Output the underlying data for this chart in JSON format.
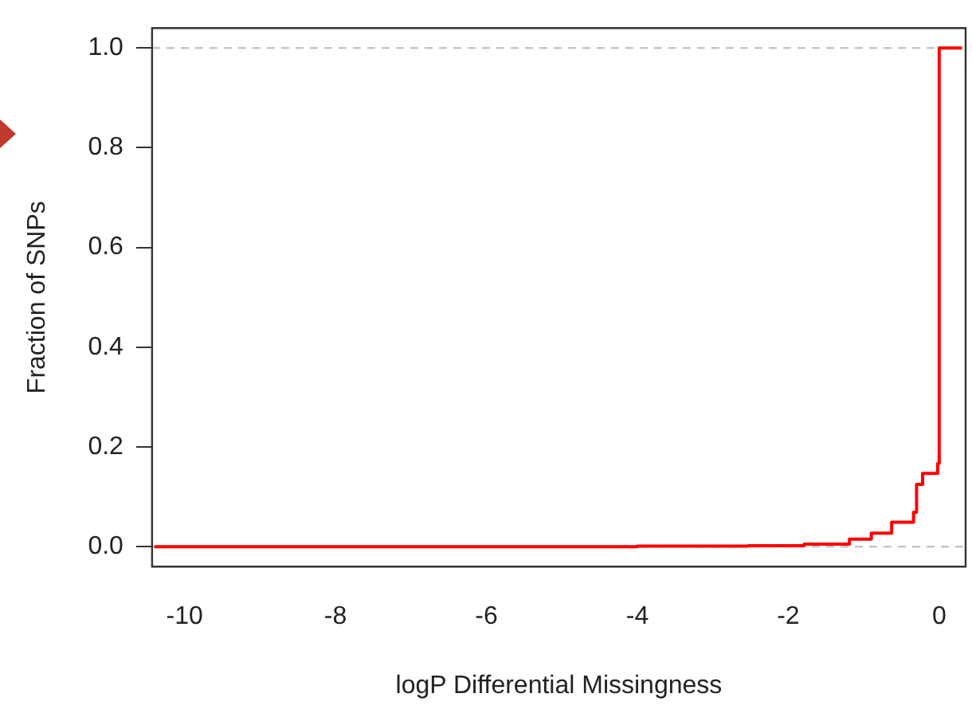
{
  "chart_data": {
    "type": "step",
    "xlabel": "logP Differential Missingness",
    "ylabel": "Fraction of SNPs",
    "series": [
      {
        "color": "#ff0000",
        "x": [
          -10.4,
          -6,
          -4,
          -2.53,
          -1.79,
          -1.19,
          -0.9,
          -0.63,
          -0.34,
          -0.3,
          -0.22,
          -0.02,
          0,
          0.3
        ],
        "values": [
          0,
          0,
          0.001,
          0.002,
          0.005,
          0.015,
          0.027,
          0.049,
          0.069,
          0.125,
          0.147,
          0.167,
          1,
          1
        ]
      }
    ],
    "xlim": [
      -10.43,
      0.35
    ],
    "ylim": [
      -0.04,
      1.04
    ],
    "xticks": [
      -10,
      -8,
      -6,
      -4,
      -2,
      0
    ],
    "yticks": [
      {
        "value": 0,
        "label": "0.0"
      },
      {
        "value": 0.2,
        "label": "0.2"
      },
      {
        "value": 0.4,
        "label": "0.4"
      },
      {
        "value": 0.6,
        "label": "0.6"
      },
      {
        "value": 0.8,
        "label": "0.8"
      },
      {
        "value": 1,
        "label": "1.0"
      }
    ],
    "ref_lines": [
      {
        "axis": "y",
        "value": 0,
        "color": "#bbbbbb",
        "line_style": "dashed"
      },
      {
        "axis": "y",
        "value": 1,
        "color": "#bbbbbb",
        "line_style": "dashed"
      }
    ],
    "grid": false,
    "legend": false,
    "marker": "none"
  }
}
